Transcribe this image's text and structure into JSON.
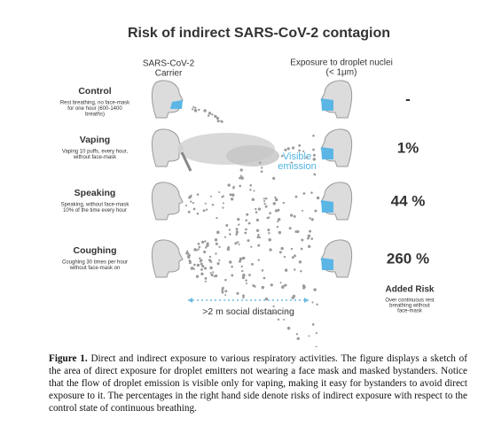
{
  "title": "Risk of indirect SARS-CoV-2 contagion",
  "carrier_header": [
    "SARS-CoV-2",
    "Carrier"
  ],
  "exposure_header": [
    "Exposure to droplet nuclei",
    "(< 1μm)"
  ],
  "rows": [
    {
      "label": "Control",
      "description": [
        "Rest breathing, no face-mask",
        "for one hour (600-1400",
        "breaths)"
      ],
      "risk": "-"
    },
    {
      "label": "Vaping",
      "description": [
        "Vaping 10 puffs, every hour,",
        "without face-mask"
      ],
      "risk": "1%"
    },
    {
      "label": "Speaking",
      "description": [
        "Speaking, without face-mask",
        "10% of the time every hour"
      ],
      "risk": "44 %"
    },
    {
      "label": "Coughing",
      "description": [
        "Coughing 30 times per hour",
        "without face-mask on"
      ],
      "risk": "260 %"
    }
  ],
  "visible_emission": [
    "Visible",
    "emission"
  ],
  "distancing": ">2 m social distancing",
  "added_risk": {
    "title": "Added Risk",
    "note": [
      "Over continuous rest",
      "breathing without",
      "face-mask"
    ]
  },
  "caption": {
    "label": "Figure 1.",
    "text": " Direct and indirect exposure to various respiratory activities. The figure displays a sketch of the area of direct exposure for droplet emitters not wearing a face mask and masked bystanders. Notice that the flow of droplet emission is visible only for vaping, making it easy for bystanders to avoid direct exposure to it. The percentages in the right hand side denote risks of indirect exposure with respect to the control state of continuous breathing."
  }
}
